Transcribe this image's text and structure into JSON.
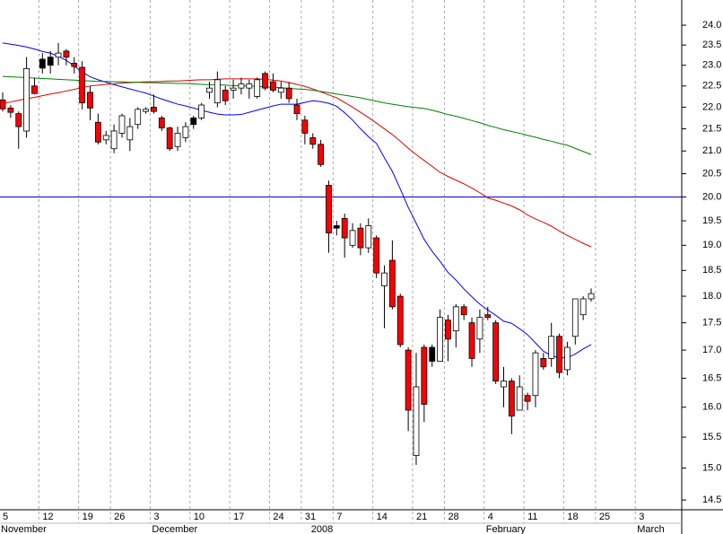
{
  "chart_data": {
    "type": "candlestick",
    "log_y": true,
    "ylim": [
      14.35,
      24.65
    ],
    "yticks": [
      14.5,
      {
        "value": 15,
        "label": "15.0"
      },
      15.5,
      {
        "value": 16,
        "label": "16.0"
      },
      16.5,
      {
        "value": 17,
        "label": "17.0"
      },
      17.5,
      {
        "value": 18,
        "label": "18.0"
      },
      18.5,
      {
        "value": 19,
        "label": "19.0"
      },
      19.5,
      {
        "value": 20,
        "label": "20.0"
      },
      20.5,
      {
        "value": 21,
        "label": "21.0"
      },
      21.5,
      {
        "value": 22,
        "label": "22.0"
      },
      22.5,
      {
        "value": 23,
        "label": "23.0"
      },
      23.5,
      {
        "value": 24,
        "label": "24.0"
      }
    ],
    "categories": [
      "5",
      null,
      null,
      null,
      null,
      "12",
      null,
      null,
      null,
      null,
      "19",
      null,
      null,
      null,
      "26",
      null,
      null,
      null,
      null,
      "3",
      null,
      null,
      null,
      null,
      "10",
      null,
      null,
      null,
      null,
      "17",
      null,
      null,
      null,
      null,
      "24",
      null,
      null,
      null,
      "31",
      null,
      null,
      null,
      "7",
      null,
      null,
      null,
      null,
      "14",
      null,
      null,
      null,
      null,
      "21",
      null,
      null,
      null,
      "28",
      null,
      null,
      null,
      null,
      "4",
      null,
      null,
      null,
      null,
      "11",
      null,
      null,
      null,
      null,
      "18",
      null,
      null,
      null,
      "25",
      null,
      null,
      null,
      null,
      "3",
      null,
      null,
      null,
      null
    ],
    "months": [
      "November",
      null,
      null,
      null,
      null,
      null,
      null,
      null,
      null,
      null,
      null,
      null,
      null,
      null,
      null,
      null,
      null,
      null,
      null,
      "December",
      null,
      null,
      null,
      null,
      null,
      null,
      null,
      null,
      null,
      null,
      null,
      null,
      null,
      null,
      null,
      null,
      null,
      null,
      null,
      "2008",
      null,
      null,
      null,
      null,
      null,
      null,
      null,
      null,
      null,
      null,
      null,
      null,
      null,
      null,
      null,
      null,
      null,
      null,
      null,
      null,
      null,
      "February",
      null,
      null,
      null,
      null,
      null,
      null,
      null,
      null,
      null,
      null,
      null,
      null,
      null,
      null,
      null,
      null,
      null,
      null,
      "March",
      null,
      null,
      null,
      null
    ],
    "open": [
      22.17,
      21.98,
      21.85,
      21.45,
      22.5,
      22.93,
      23.0,
      23.2,
      23.35,
      23.05,
      22.95,
      22.35,
      21.65,
      21.25,
      21.05,
      21.4,
      21.25,
      21.6,
      21.9,
      22.0,
      21.75,
      21.52,
      21.1,
      21.3,
      21.6,
      21.75,
      22.35,
      22.1,
      22.4,
      22.4,
      22.45,
      22.45,
      22.25,
      22.8,
      22.6,
      22.35,
      22.45,
      22.05,
      21.7,
      21.3,
      21.15,
      20.25,
      19.35,
      19.55,
      19.0,
      19.35,
      18.95,
      19.15,
      18.2,
      18.7,
      18.0,
      17.0,
      15.2,
      17.05,
      16.8,
      16.8,
      17.55,
      17.35,
      17.8,
      17.5,
      17.2,
      17.65,
      17.5,
      16.35,
      16.45,
      15.95,
      16.2,
      16.2,
      16.85,
      16.85,
      17.25,
      16.65,
      17.25,
      17.65,
      17.95,
      null,
      null,
      null,
      null,
      null,
      null,
      null,
      null,
      null,
      null
    ],
    "high": [
      22.35,
      22.05,
      21.9,
      23.2,
      22.7,
      23.3,
      23.35,
      23.55,
      23.4,
      23.2,
      23.1,
      22.5,
      21.85,
      21.45,
      21.6,
      21.85,
      21.75,
      22.0,
      22.0,
      22.3,
      21.8,
      21.55,
      21.55,
      21.65,
      21.8,
      22.1,
      22.6,
      22.85,
      22.5,
      22.65,
      22.7,
      22.65,
      22.7,
      22.85,
      22.8,
      22.6,
      22.6,
      22.2,
      21.8,
      21.4,
      21.25,
      20.35,
      19.5,
      19.65,
      19.45,
      19.45,
      19.55,
      19.2,
      18.6,
      19.1,
      18.05,
      17.05,
      16.95,
      17.1,
      17.1,
      17.75,
      17.65,
      17.85,
      17.85,
      17.6,
      17.75,
      17.8,
      17.55,
      16.7,
      16.5,
      16.55,
      16.25,
      17.0,
      16.95,
      17.5,
      17.3,
      17.15,
      17.95,
      18.0,
      18.15,
      null,
      null,
      null,
      null,
      null,
      null,
      null,
      null,
      null,
      null
    ],
    "low": [
      21.9,
      21.75,
      21.05,
      21.3,
      22.3,
      22.8,
      22.8,
      23.0,
      23.0,
      22.8,
      21.95,
      21.7,
      21.15,
      21.15,
      20.95,
      21.3,
      21.0,
      21.5,
      21.85,
      21.85,
      21.45,
      21.0,
      21.0,
      21.2,
      21.5,
      21.7,
      22.2,
      22.0,
      22.05,
      22.2,
      22.3,
      22.2,
      22.2,
      22.4,
      22.35,
      22.2,
      22.1,
      21.7,
      21.15,
      21.05,
      20.65,
      18.85,
      19.2,
      18.75,
      18.95,
      18.8,
      18.85,
      18.35,
      17.4,
      17.75,
      17.05,
      15.6,
      15.05,
      15.75,
      16.7,
      16.8,
      16.8,
      17.05,
      17.55,
      16.7,
      16.95,
      17.55,
      16.4,
      16.0,
      15.55,
      15.95,
      15.95,
      16.0,
      16.65,
      16.7,
      16.5,
      16.55,
      17.1,
      17.55,
      17.9,
      null,
      null,
      null,
      null,
      null,
      null,
      null,
      null,
      null,
      null
    ],
    "close": [
      21.96,
      21.88,
      21.55,
      22.92,
      22.32,
      23.15,
      23.2,
      23.3,
      23.2,
      22.97,
      22.1,
      21.98,
      21.2,
      21.35,
      21.45,
      21.8,
      21.55,
      21.95,
      21.95,
      21.9,
      21.52,
      21.05,
      21.4,
      21.55,
      21.75,
      22.05,
      22.45,
      22.65,
      22.15,
      22.45,
      22.55,
      22.55,
      22.65,
      22.45,
      22.4,
      22.45,
      22.2,
      21.85,
      21.4,
      21.15,
      20.7,
      19.25,
      19.4,
      19.15,
      19.3,
      18.95,
      19.4,
      18.45,
      18.45,
      17.8,
      17.1,
      15.95,
      16.35,
      16.05,
      17.05,
      17.6,
      17.2,
      17.8,
      17.65,
      16.85,
      17.6,
      17.6,
      16.45,
      16.45,
      15.85,
      16.35,
      16.1,
      16.95,
      16.7,
      17.25,
      16.6,
      17.05,
      17.95,
      17.95,
      18.05,
      null,
      null,
      null,
      null,
      null,
      null,
      null,
      null,
      null,
      null
    ],
    "body_colors": [
      "#ff0000",
      "#ff0000",
      "#ff0000",
      "#ffffff",
      "#ff0000",
      "#000000",
      "#000000",
      "#ffffff",
      "#ff0000",
      "#ff0000",
      "#ff0000",
      "#ff0000",
      "#ff0000",
      "#ffffff",
      "#ffffff",
      "#ffffff",
      "#ffffff",
      "#ffffff",
      "#ffffff",
      "#ff0000",
      "#ff0000",
      "#ff0000",
      "#ffffff",
      "#ffffff",
      "#000000",
      "#ffffff",
      "#ffffff",
      "#ffffff",
      "#ff0000",
      "#ffffff",
      "#ffffff",
      "#ffffff",
      "#ffffff",
      "#ff0000",
      "#ff0000",
      "#ffffff",
      "#ff0000",
      "#ff0000",
      "#ff0000",
      "#ff0000",
      "#ff0000",
      "#ff0000",
      "#000000",
      "#ff0000",
      "#ffffff",
      "#ff0000",
      "#ffffff",
      "#ff0000",
      "#ffffff",
      "#ff0000",
      "#ff0000",
      "#ff0000",
      "#ffffff",
      "#ff0000",
      "#000000",
      "#ffffff",
      "#ff0000",
      "#ffffff",
      "#ff0000",
      "#ff0000",
      "#ffffff",
      "#ff0000",
      "#ff0000",
      "#ffffff",
      "#ff0000",
      "#ffffff",
      "#ff0000",
      "#ffffff",
      "#ff0000",
      "#ffffff",
      "#ff0000",
      "#ffffff",
      "#ffffff",
      "#ffffff",
      "#ffffff",
      null,
      null,
      null,
      null,
      null,
      null,
      null,
      null,
      null,
      null
    ],
    "lines": [
      {
        "color": "#0000ff",
        "values": [
          23.55,
          23.52,
          23.49,
          23.45,
          23.4,
          23.34,
          23.3,
          23.22,
          23.12,
          22.98,
          22.84,
          22.72,
          22.65,
          22.59,
          22.53,
          22.48,
          22.43,
          22.38,
          22.33,
          22.26,
          22.19,
          22.13,
          22.07,
          22.03,
          21.98,
          21.93,
          21.88,
          21.84,
          21.82,
          21.82,
          21.83,
          21.88,
          21.93,
          21.98,
          22.03,
          22.07,
          22.07,
          22.07,
          22.11,
          22.15,
          22.13,
          22.09,
          22.02,
          21.87,
          21.7,
          21.5,
          21.32,
          21.17,
          20.85,
          20.55,
          20.17,
          19.78,
          19.45,
          19.12,
          18.88,
          18.68,
          18.46,
          18.31,
          18.14,
          17.99,
          17.85,
          17.74,
          17.64,
          17.53,
          17.49,
          17.39,
          17.28,
          17.13,
          16.98,
          16.9,
          16.86,
          16.86,
          16.93,
          17.02,
          17.1,
          null,
          null,
          null,
          null,
          null,
          null,
          null,
          null,
          null,
          null
        ]
      },
      {
        "color": "#e00000",
        "values": [
          22.09,
          22.12,
          22.16,
          22.2,
          22.23,
          22.27,
          22.31,
          22.34,
          22.38,
          22.42,
          22.46,
          22.5,
          22.52,
          22.54,
          22.55,
          22.57,
          22.58,
          22.59,
          22.6,
          22.6,
          22.61,
          22.62,
          22.62,
          22.63,
          22.64,
          22.65,
          22.65,
          22.66,
          22.67,
          22.67,
          22.67,
          22.67,
          22.67,
          22.66,
          22.64,
          22.62,
          22.58,
          22.54,
          22.49,
          22.43,
          22.36,
          22.29,
          22.22,
          22.11,
          22.0,
          21.88,
          21.76,
          21.63,
          21.5,
          21.37,
          21.22,
          21.06,
          20.92,
          20.79,
          20.66,
          20.53,
          20.44,
          20.36,
          20.28,
          20.19,
          20.09,
          19.98,
          19.93,
          19.87,
          19.81,
          19.73,
          19.62,
          19.54,
          19.47,
          19.39,
          19.29,
          19.2,
          19.12,
          19.04,
          18.97,
          null,
          null,
          null,
          null,
          null,
          null,
          null,
          null,
          null,
          null
        ]
      },
      {
        "color": "#008000",
        "values": [
          22.73,
          22.72,
          22.71,
          22.7,
          22.69,
          22.68,
          22.67,
          22.66,
          22.65,
          22.64,
          22.63,
          22.62,
          22.61,
          22.61,
          22.6,
          22.6,
          22.59,
          22.59,
          22.58,
          22.58,
          22.57,
          22.57,
          22.56,
          22.56,
          22.55,
          22.54,
          22.53,
          22.53,
          22.52,
          22.51,
          22.5,
          22.5,
          22.49,
          22.48,
          22.47,
          22.46,
          22.44,
          22.43,
          22.42,
          22.4,
          22.37,
          22.34,
          22.31,
          22.28,
          22.25,
          22.22,
          22.18,
          22.14,
          22.1,
          22.07,
          22.04,
          22.01,
          21.99,
          21.97,
          21.93,
          21.88,
          21.83,
          21.79,
          21.74,
          21.69,
          21.64,
          21.58,
          21.53,
          21.48,
          21.44,
          21.4,
          21.35,
          21.31,
          21.26,
          21.22,
          21.17,
          21.13,
          21.06,
          20.99,
          20.92,
          null,
          null,
          null,
          null,
          null,
          null,
          null,
          null,
          null,
          null
        ]
      }
    ],
    "reference_line": {
      "value": 20,
      "color": "#0000cc"
    },
    "grid": true
  }
}
